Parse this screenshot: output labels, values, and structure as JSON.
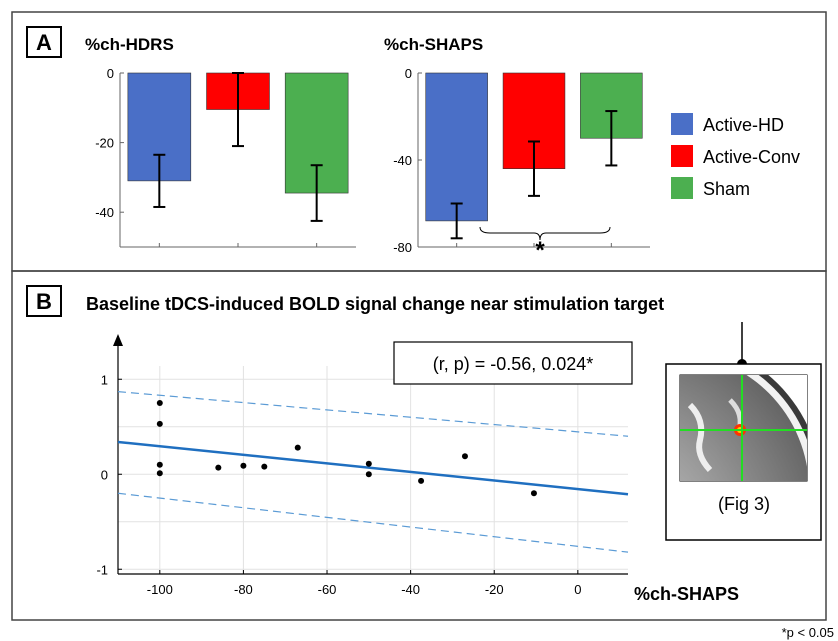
{
  "panel_a": {
    "letter": "A",
    "legend": [
      {
        "label": "Active-HD",
        "color": "#4a6fc7"
      },
      {
        "label": "Active-Conv",
        "color": "#ff0000"
      },
      {
        "label": "Sham",
        "color": "#4caf50"
      }
    ],
    "significance_mark": "*"
  },
  "panel_b": {
    "letter": "B",
    "title": "Baseline tDCS-induced BOLD signal change near stimulation target",
    "stat_box": "(r, p) = -0.56, 0.024*",
    "inset_caption": "(Fig 3)"
  },
  "footnote": "*p < 0.05",
  "chart_data": [
    {
      "type": "bar",
      "title": "%ch-HDRS",
      "categories": [
        "Active-HD",
        "Active-Conv",
        "Sham"
      ],
      "values": [
        -31,
        -10.5,
        -34.5
      ],
      "errors": [
        7.5,
        10.5,
        8
      ],
      "colors": [
        "#4a6fc7",
        "#ff0000",
        "#4caf50"
      ],
      "ylim": [
        -50,
        0
      ],
      "yticks": [
        0,
        -20,
        -40
      ],
      "ylabel": "",
      "xlabel": ""
    },
    {
      "type": "bar",
      "title": "%ch-SHAPS",
      "categories": [
        "Active-HD",
        "Active-Conv",
        "Sham"
      ],
      "values": [
        -68,
        -44,
        -30
      ],
      "errors": [
        8,
        12.5,
        12.5
      ],
      "colors": [
        "#4a6fc7",
        "#ff0000",
        "#4caf50"
      ],
      "ylim": [
        -80,
        0
      ],
      "yticks": [
        0,
        -40,
        -80
      ],
      "ylabel": "",
      "xlabel": ""
    },
    {
      "type": "scatter",
      "title": "",
      "xlabel": "%ch-SHAPS",
      "ylabel": "",
      "xlim": [
        -110,
        12
      ],
      "ylim": [
        -1.05,
        1.35
      ],
      "xticks": [
        -100,
        -80,
        -60,
        -40,
        -20,
        0
      ],
      "yticks": [
        -1,
        0,
        1
      ],
      "points": [
        {
          "x": -100,
          "y": 0.75
        },
        {
          "x": -100,
          "y": 0.53
        },
        {
          "x": -100,
          "y": 0.1
        },
        {
          "x": -100,
          "y": 0.01
        },
        {
          "x": -86,
          "y": 0.07
        },
        {
          "x": -80,
          "y": 0.09
        },
        {
          "x": -75,
          "y": 0.08
        },
        {
          "x": -67,
          "y": 0.28
        },
        {
          "x": -50,
          "y": 0.11
        },
        {
          "x": -50,
          "y": 0.0
        },
        {
          "x": -37.5,
          "y": -0.07
        },
        {
          "x": -27,
          "y": 0.19
        },
        {
          "x": -10.5,
          "y": -0.2
        }
      ],
      "fit_line": [
        {
          "x": -110,
          "y": 0.34
        },
        {
          "x": 12,
          "y": -0.21
        }
      ],
      "ci_upper": [
        {
          "x": -110,
          "y": 0.87
        },
        {
          "x": 12,
          "y": 0.4
        }
      ],
      "ci_lower": [
        {
          "x": -110,
          "y": -0.2
        },
        {
          "x": 12,
          "y": -0.82
        }
      ],
      "line_color": "#1f6fc0",
      "grid": true
    }
  ]
}
